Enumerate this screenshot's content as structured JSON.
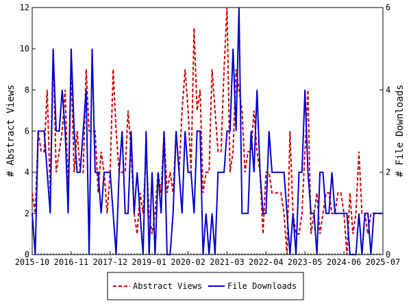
{
  "chart_data": {
    "type": "line",
    "title": "",
    "ylabel_left": "# Abstract Views",
    "ylabel_right": "# File Downloads",
    "ylim_left": [
      0,
      12
    ],
    "ylim_right": [
      0,
      6
    ],
    "yticks_left": [
      0,
      2,
      4,
      6,
      8,
      10,
      12
    ],
    "yticks_right": [
      0,
      2,
      4,
      6
    ],
    "xlim": [
      "2015-10",
      "2025-07"
    ],
    "xticks": [
      "2015-10",
      "2016-11",
      "2017-12",
      "2019-01",
      "2020-02",
      "2021-03",
      "2022-04",
      "2023-05",
      "2024-06",
      "2025-07"
    ],
    "grid": false,
    "legend_position": "bottom",
    "x": [
      "2015-10",
      "2015-11",
      "2015-12",
      "2016-01",
      "2016-02",
      "2016-03",
      "2016-04",
      "2016-05",
      "2016-06",
      "2016-07",
      "2016-08",
      "2016-09",
      "2016-10",
      "2016-11",
      "2016-12",
      "2017-01",
      "2017-02",
      "2017-03",
      "2017-04",
      "2017-05",
      "2017-06",
      "2017-07",
      "2017-08",
      "2017-09",
      "2017-10",
      "2017-11",
      "2017-12",
      "2018-01",
      "2018-02",
      "2018-03",
      "2018-04",
      "2018-05",
      "2018-06",
      "2018-07",
      "2018-08",
      "2018-09",
      "2018-10",
      "2018-11",
      "2018-12",
      "2019-01",
      "2019-02",
      "2019-03",
      "2019-04",
      "2019-05",
      "2019-06",
      "2019-07",
      "2019-08",
      "2019-09",
      "2019-10",
      "2019-11",
      "2019-12",
      "2020-01",
      "2020-02",
      "2020-03",
      "2020-04",
      "2020-05",
      "2020-06",
      "2020-07",
      "2020-08",
      "2020-09",
      "2020-10",
      "2020-11",
      "2020-12",
      "2021-01",
      "2021-02",
      "2021-03",
      "2021-04",
      "2021-05",
      "2021-06",
      "2021-07",
      "2021-08",
      "2021-09",
      "2021-10",
      "2021-11",
      "2021-12",
      "2022-01",
      "2022-02",
      "2022-03",
      "2022-04",
      "2022-05",
      "2022-06",
      "2022-07",
      "2022-08",
      "2022-09",
      "2022-10",
      "2022-11",
      "2022-12",
      "2023-01",
      "2023-02",
      "2023-03",
      "2023-04",
      "2023-05",
      "2023-06",
      "2023-07",
      "2023-08",
      "2023-09",
      "2023-10",
      "2023-11",
      "2023-12",
      "2024-01",
      "2024-02",
      "2024-03",
      "2024-04",
      "2024-05",
      "2024-06",
      "2024-07",
      "2024-08",
      "2024-09",
      "2024-10",
      "2024-11",
      "2024-12",
      "2025-01",
      "2025-02",
      "2025-03",
      "2025-04",
      "2025-05",
      "2025-06",
      "2025-07"
    ],
    "series": [
      {
        "name": "Abstract Views",
        "axis": "left",
        "color": "#cc0000",
        "dash": "dashed",
        "values": [
          3,
          2,
          6,
          5,
          5,
          8,
          3,
          10,
          4,
          5,
          6,
          8,
          3,
          9,
          4,
          6,
          4,
          4,
          9,
          6,
          6,
          6,
          3,
          5,
          4,
          2,
          4,
          9,
          6,
          4,
          4,
          4,
          7,
          5,
          2,
          1,
          3,
          2,
          5,
          2,
          1,
          2,
          4,
          3,
          6,
          3,
          4,
          3,
          6,
          4,
          7,
          9,
          7,
          4,
          11,
          7,
          8,
          3,
          4,
          4,
          9,
          7,
          5,
          5,
          9,
          12,
          4,
          5,
          9,
          8,
          7,
          4,
          5,
          5,
          7,
          5,
          4,
          1,
          4,
          4,
          3,
          3,
          3,
          3,
          2,
          0,
          6,
          2,
          1,
          1,
          2,
          5,
          8,
          1,
          2,
          3,
          1,
          2,
          3,
          3,
          2,
          2,
          3,
          3,
          2,
          0,
          3,
          1,
          2,
          5,
          2,
          2,
          1,
          2,
          2,
          2,
          2,
          2
        ],
        "values_as_percent_note": ""
      },
      {
        "name": "File Downloads",
        "axis": "right",
        "color": "#0000cc",
        "dash": "solid",
        "values": [
          1,
          0,
          3,
          3,
          3,
          2,
          1,
          5,
          3,
          3,
          4,
          3,
          1,
          5,
          3,
          2,
          2,
          3,
          4,
          0,
          5,
          2,
          2,
          1,
          2,
          2,
          2,
          1,
          0,
          2,
          3,
          1,
          1,
          3,
          1,
          2,
          1,
          0,
          3,
          0,
          2,
          0,
          2,
          1,
          3,
          0,
          0,
          1,
          3,
          2,
          1,
          3,
          2,
          2,
          1,
          3,
          3,
          0,
          1,
          0,
          1,
          0,
          2,
          2,
          2,
          3,
          3,
          5,
          3,
          6,
          1,
          1,
          1,
          3,
          2,
          4,
          2,
          1,
          1,
          3,
          2,
          2,
          2,
          2,
          2,
          1,
          0,
          1,
          0,
          2,
          2,
          4,
          2,
          1,
          1,
          0,
          2,
          2,
          1,
          1,
          2,
          1,
          1,
          1,
          1,
          1,
          0,
          0,
          0,
          1,
          0,
          1,
          1,
          0,
          1,
          1,
          1,
          1
        ]
      }
    ]
  },
  "legend": {
    "items": [
      {
        "label": "Abstract Views",
        "color": "#cc0000",
        "dash": "dashed"
      },
      {
        "label": "File Downloads",
        "color": "#0000cc",
        "dash": "solid"
      }
    ]
  }
}
